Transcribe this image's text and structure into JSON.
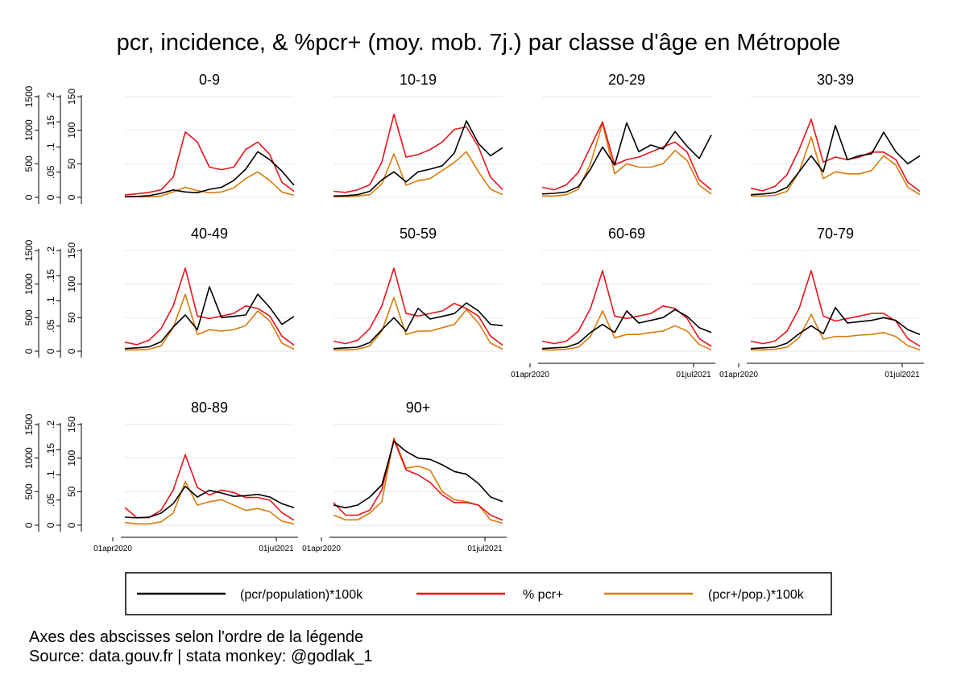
{
  "title": "pcr, incidence, & %pcr+ (moy. mob. 7j.) par classe d'âge en Métropole",
  "footnote_line1": "Axes des abscisses selon l'ordre de la légende",
  "footnote_line2": "Source: data.gouv.fr | stata monkey: @godlak_1",
  "colors": {
    "pcr_population": "#000000",
    "pct_pcr_pos": "#e8141c",
    "pcr_pos_pop": "#d97b0a",
    "grid": "#e6e6e6"
  },
  "legend": [
    {
      "label": "(pcr/population)*100k",
      "color": "#000000"
    },
    {
      "label": "% pcr+",
      "color": "#e8141c"
    },
    {
      "label": "(pcr+/pop.)*100k",
      "color": "#d97b0a"
    }
  ],
  "chart_data": {
    "type": "line",
    "layout": "small-multiples 4x3",
    "x_ticks": [
      "01apr2020",
      "01jul2021"
    ],
    "y_axes": [
      {
        "series": "(pcr/population)*100k",
        "ticks": [
          "0",
          "500",
          "1000",
          "1500"
        ],
        "ylim": [
          0,
          1500
        ]
      },
      {
        "series": "% pcr+",
        "ticks": [
          "0",
          ".05",
          ".1",
          ".15",
          ".2"
        ],
        "ylim": [
          0,
          0.2
        ]
      },
      {
        "series": "(pcr+/pop.)*100k",
        "ticks": [
          "0",
          "50",
          "100",
          "150"
        ],
        "ylim": [
          0,
          150
        ]
      }
    ],
    "x_sample_dates": [
      "2020-05",
      "2020-06",
      "2020-07",
      "2020-08",
      "2020-09",
      "2020-10",
      "2020-11",
      "2020-12",
      "2021-01",
      "2021-02",
      "2021-03",
      "2021-04",
      "2021-05",
      "2021-06",
      "2021-07"
    ],
    "panels": [
      {
        "label": "0-9",
        "pcr_population": [
          10,
          15,
          25,
          60,
          110,
          80,
          70,
          120,
          150,
          250,
          420,
          680,
          560,
          390,
          180
        ],
        "pct_pcr_pos": [
          0.005,
          0.007,
          0.01,
          0.015,
          0.04,
          0.13,
          0.11,
          0.06,
          0.055,
          0.06,
          0.095,
          0.11,
          0.085,
          0.03,
          0.012
        ],
        "pcr_pos_pop": [
          1,
          1,
          1,
          2,
          8,
          15,
          10,
          7,
          8,
          14,
          28,
          38,
          25,
          8,
          3
        ]
      },
      {
        "label": "10-19",
        "pcr_population": [
          20,
          25,
          40,
          90,
          260,
          380,
          230,
          380,
          420,
          470,
          660,
          1140,
          800,
          620,
          740
        ],
        "pct_pcr_pos": [
          0.012,
          0.01,
          0.015,
          0.025,
          0.07,
          0.165,
          0.08,
          0.085,
          0.095,
          0.11,
          0.135,
          0.14,
          0.1,
          0.04,
          0.015
        ],
        "pcr_pos_pop": [
          1,
          1,
          2,
          4,
          20,
          65,
          18,
          25,
          28,
          40,
          52,
          68,
          38,
          12,
          4
        ]
      },
      {
        "label": "20-29",
        "pcr_population": [
          50,
          60,
          80,
          160,
          420,
          750,
          480,
          1110,
          680,
          780,
          720,
          980,
          760,
          580,
          930
        ],
        "pct_pcr_pos": [
          0.02,
          0.015,
          0.025,
          0.05,
          0.1,
          0.15,
          0.065,
          0.075,
          0.08,
          0.09,
          0.1,
          0.11,
          0.09,
          0.035,
          0.015
        ],
        "pcr_pos_pop": [
          2,
          2,
          4,
          12,
          50,
          110,
          35,
          50,
          45,
          45,
          50,
          70,
          55,
          18,
          5
        ]
      },
      {
        "label": "30-39",
        "pcr_population": [
          40,
          50,
          70,
          150,
          380,
          620,
          380,
          1070,
          560,
          620,
          650,
          970,
          680,
          500,
          620
        ],
        "pct_pcr_pos": [
          0.018,
          0.013,
          0.022,
          0.045,
          0.095,
          0.155,
          0.07,
          0.08,
          0.075,
          0.08,
          0.09,
          0.09,
          0.075,
          0.03,
          0.012
        ],
        "pcr_pos_pop": [
          2,
          2,
          3,
          9,
          38,
          90,
          28,
          38,
          35,
          35,
          40,
          62,
          48,
          15,
          4
        ]
      },
      {
        "label": "40-49",
        "pcr_population": [
          40,
          50,
          65,
          140,
          360,
          540,
          320,
          960,
          500,
          520,
          540,
          850,
          650,
          400,
          520
        ],
        "pct_pcr_pos": [
          0.018,
          0.013,
          0.022,
          0.045,
          0.09,
          0.165,
          0.07,
          0.065,
          0.07,
          0.075,
          0.09,
          0.085,
          0.07,
          0.03,
          0.012
        ],
        "pcr_pos_pop": [
          2,
          2,
          3,
          8,
          35,
          85,
          25,
          32,
          30,
          32,
          38,
          60,
          45,
          12,
          3
        ]
      },
      {
        "label": "50-59",
        "pcr_population": [
          40,
          50,
          60,
          130,
          320,
          500,
          300,
          640,
          480,
          520,
          560,
          720,
          600,
          400,
          380
        ],
        "pct_pcr_pos": [
          0.02,
          0.015,
          0.022,
          0.045,
          0.09,
          0.165,
          0.075,
          0.07,
          0.075,
          0.08,
          0.095,
          0.085,
          0.07,
          0.03,
          0.012
        ],
        "pcr_pos_pop": [
          2,
          2,
          3,
          8,
          30,
          80,
          25,
          30,
          30,
          35,
          40,
          62,
          42,
          12,
          3
        ]
      },
      {
        "label": "60-69",
        "pcr_population": [
          40,
          50,
          60,
          120,
          280,
          400,
          280,
          600,
          420,
          460,
          500,
          620,
          520,
          350,
          280
        ],
        "pct_pcr_pos": [
          0.02,
          0.015,
          0.02,
          0.04,
          0.085,
          0.16,
          0.07,
          0.065,
          0.07,
          0.075,
          0.09,
          0.085,
          0.065,
          0.025,
          0.01
        ],
        "pcr_pos_pop": [
          2,
          2,
          3,
          6,
          22,
          60,
          20,
          25,
          25,
          28,
          30,
          38,
          30,
          10,
          2
        ]
      },
      {
        "label": "70-79",
        "pcr_population": [
          40,
          50,
          60,
          120,
          260,
          380,
          260,
          650,
          420,
          440,
          460,
          500,
          460,
          320,
          250
        ],
        "pct_pcr_pos": [
          0.02,
          0.015,
          0.02,
          0.04,
          0.085,
          0.16,
          0.07,
          0.06,
          0.065,
          0.07,
          0.075,
          0.075,
          0.06,
          0.025,
          0.01
        ],
        "pcr_pos_pop": [
          2,
          2,
          3,
          6,
          20,
          55,
          18,
          22,
          22,
          24,
          25,
          28,
          22,
          8,
          2
        ]
      },
      {
        "label": "80-89",
        "pcr_population": [
          120,
          110,
          120,
          180,
          320,
          580,
          420,
          520,
          480,
          430,
          440,
          460,
          420,
          320,
          260
        ],
        "pct_pcr_pos": [
          0.035,
          0.015,
          0.015,
          0.03,
          0.07,
          0.14,
          0.075,
          0.06,
          0.07,
          0.065,
          0.055,
          0.055,
          0.05,
          0.025,
          0.01
        ],
        "pcr_pos_pop": [
          4,
          2,
          2,
          5,
          18,
          65,
          30,
          35,
          38,
          30,
          22,
          25,
          20,
          6,
          2
        ]
      },
      {
        "label": "90+",
        "pcr_population": [
          300,
          260,
          300,
          420,
          600,
          1250,
          1100,
          1000,
          980,
          900,
          800,
          760,
          620,
          420,
          350
        ],
        "pct_pcr_pos": [
          0.045,
          0.02,
          0.02,
          0.03,
          0.07,
          0.17,
          0.11,
          0.1,
          0.085,
          0.06,
          0.045,
          0.045,
          0.04,
          0.02,
          0.01
        ],
        "pcr_pos_pop": [
          15,
          8,
          8,
          18,
          35,
          130,
          85,
          88,
          82,
          50,
          38,
          35,
          30,
          8,
          3
        ]
      }
    ]
  }
}
